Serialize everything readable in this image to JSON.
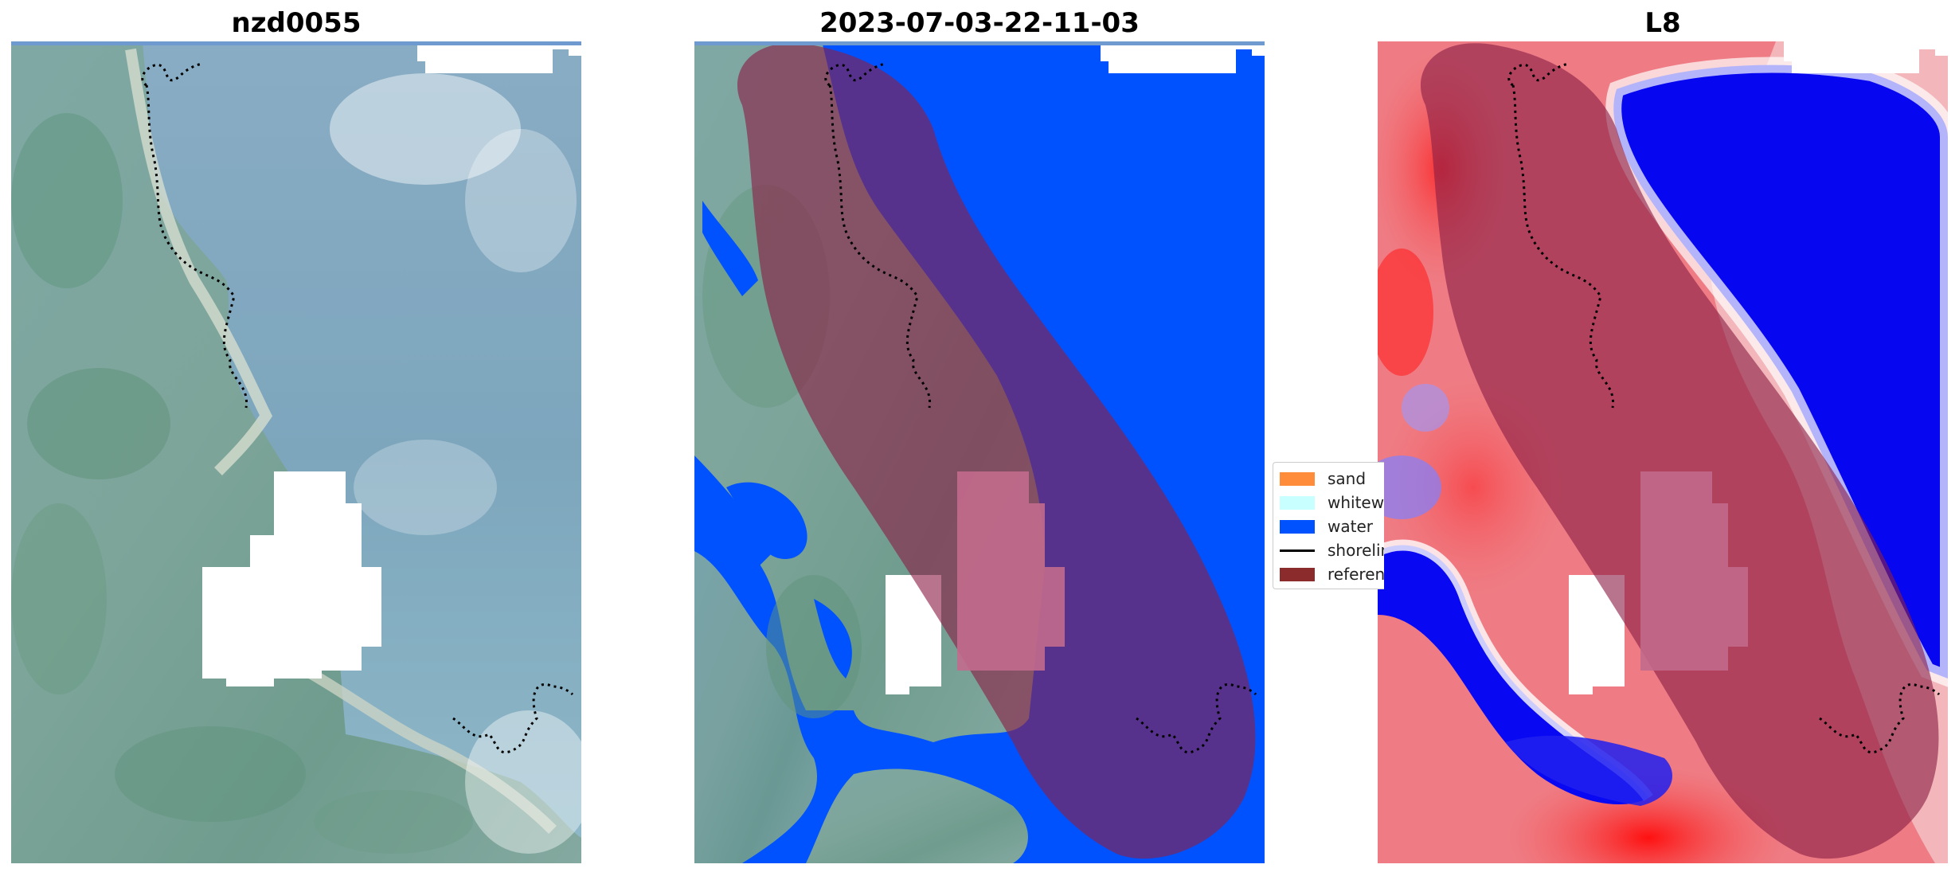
{
  "panels": [
    {
      "title": "nzd0055"
    },
    {
      "title": "2023-07-03-22-11-03"
    },
    {
      "title": "L8"
    }
  ],
  "legend": {
    "items": [
      {
        "label": "sand",
        "color": "#ff8c3a"
      },
      {
        "label": "whitewater",
        "color": "#c8ffff"
      },
      {
        "label": "water",
        "color": "#0052ff"
      },
      {
        "label": "shoreline",
        "color": "#000000"
      },
      {
        "label": "reference shoreline buffer",
        "color": "#8b2b2b"
      }
    ]
  },
  "colors": {
    "buffer_overlay": "#8b1e46",
    "water_class": "#0052ff",
    "index_positive": "#e01020",
    "index_negative": "#1010f0",
    "no_data": "#ffffff"
  }
}
